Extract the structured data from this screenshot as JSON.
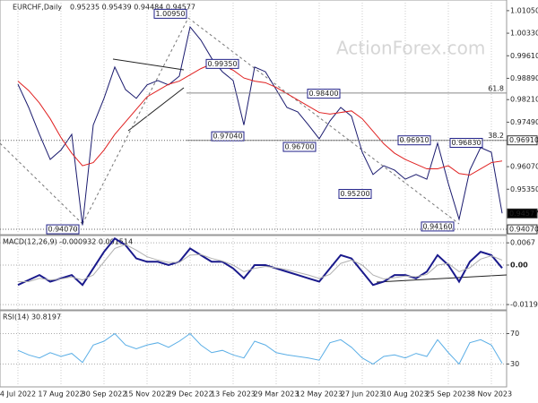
{
  "header": {
    "symbol": "EURCHF,Daily",
    "ohlc": "0.95235 0.95439 0.94484 0.94577"
  },
  "watermark": "ActionForex.com",
  "chart_data": [
    {
      "type": "line",
      "categories": [
        "4 Jul 2022",
        null,
        null,
        null,
        "17 Aug 2022",
        null,
        null,
        null,
        "30 Sep 2022",
        null,
        null,
        null,
        "15 Nov 2022",
        null,
        null,
        null,
        "29 Dec 2022",
        null,
        null,
        null,
        "13 Feb 2023",
        null,
        null,
        null,
        "29 Mar 2023",
        null,
        null,
        null,
        "12 May 2023",
        null,
        null,
        null,
        "27 Jun 2023",
        null,
        null,
        null,
        "10 Aug 2023",
        null,
        null,
        null,
        "25 Sep 2023",
        null,
        null,
        null,
        "8 Nov 2023",
        null
      ],
      "series": [
        {
          "color": "#1a1a6e",
          "values": [
            0.987,
            0.9796,
            0.971,
            0.963,
            0.966,
            0.971,
            0.942,
            0.974,
            0.9825,
            0.9925,
            0.9853,
            0.9825,
            0.9868,
            0.9882,
            0.9868,
            0.9896,
            1.0053,
            1.0011,
            0.9953,
            0.991,
            0.9882,
            0.974,
            0.9925,
            0.991,
            0.9853,
            0.9796,
            0.9782,
            0.974,
            0.9696,
            0.9753,
            0.9796,
            0.9768,
            0.9653,
            0.9582,
            0.961,
            0.9596,
            0.9567,
            0.9582,
            0.9567,
            0.9682,
            0.9553,
            0.9439,
            0.9596,
            0.9668,
            0.9653,
            0.9458
          ]
        },
        {
          "color": "#e02020",
          "values": [
            0.988,
            0.985,
            0.981,
            0.976,
            0.97,
            0.965,
            0.961,
            0.962,
            0.966,
            0.971,
            0.975,
            0.979,
            0.983,
            0.985,
            0.987,
            0.988,
            0.99,
            0.992,
            0.9935,
            0.993,
            0.9915,
            0.989,
            0.988,
            0.9875,
            0.986,
            0.984,
            0.982,
            0.98,
            0.978,
            0.9775,
            0.978,
            0.9785,
            0.976,
            0.972,
            0.968,
            0.965,
            0.963,
            0.9615,
            0.96,
            0.96,
            0.961,
            0.9585,
            0.958,
            0.96,
            0.962,
            0.9625
          ]
        }
      ],
      "ylim": [
        0.939,
        1.0139
      ],
      "yticks": [
        {
          "value": 1.0105,
          "label": "1.01050"
        },
        {
          "value": 1.0033,
          "label": "1.00330"
        },
        {
          "value": 0.9961,
          "label": "0.99610"
        },
        {
          "value": 0.9889,
          "label": "0.98890"
        },
        {
          "value": 0.9821,
          "label": "0.98210"
        },
        {
          "value": 0.9749,
          "label": "0.97490"
        },
        {
          "value": 0.9607,
          "label": "0.96070"
        },
        {
          "value": 0.9535,
          "label": "0.95350"
        }
      ],
      "annotations": [
        {
          "label": "1.00950",
          "value": 1.0095
        },
        {
          "label": "0.99350",
          "value": 0.9935
        },
        {
          "label": "0.98400",
          "value": 0.984
        },
        {
          "label": "0.97040",
          "value": 0.9704
        },
        {
          "label": "0.96700",
          "value": 0.967
        },
        {
          "label": "0.96910",
          "value": 0.9691
        },
        {
          "label": "0.96830",
          "value": 0.9683
        },
        {
          "label": "0.95200",
          "value": 0.952
        },
        {
          "label": "0.94160",
          "value": 0.9416
        },
        {
          "label": "0.94070",
          "value": 0.9407
        }
      ],
      "fib_levels": [
        {
          "label": "61.8",
          "value": 0.9842
        },
        {
          "label": "38.2",
          "value": 0.9691
        }
      ],
      "price_markers": [
        {
          "label": "0.96910",
          "value": 0.9691,
          "color": "#ffffff"
        },
        {
          "label": "0.94577",
          "value": 0.94577,
          "color": "#000000"
        },
        {
          "label": "0.94070",
          "value": 0.9407,
          "color": "#ffffff"
        }
      ]
    },
    {
      "type": "line",
      "title": "MACD(12,26,9) -0.000932 0.001514",
      "series": [
        {
          "color": "#1a1a8c",
          "values": [
            -0.006,
            -0.0045,
            -0.003,
            -0.005,
            -0.004,
            -0.003,
            -0.006,
            -0.001,
            0.004,
            0.008,
            0.006,
            0.002,
            0.001,
            0.001,
            0.0,
            0.001,
            0.005,
            0.003,
            0.001,
            0.001,
            -0.001,
            -0.004,
            0.0,
            0.0,
            -0.001,
            -0.002,
            -0.003,
            -0.004,
            -0.005,
            -0.001,
            0.003,
            0.002,
            -0.002,
            -0.006,
            -0.005,
            -0.003,
            -0.003,
            -0.004,
            -0.002,
            0.003,
            0.0,
            -0.005,
            0.001,
            0.004,
            0.003,
            -0.0009
          ]
        },
        {
          "color": "#b0b0b0",
          "values": [
            -0.005,
            -0.005,
            -0.004,
            -0.0045,
            -0.0042,
            -0.0036,
            -0.0045,
            -0.003,
            0.001,
            0.005,
            0.0062,
            0.0045,
            0.0025,
            0.0015,
            0.0008,
            0.0008,
            0.003,
            0.0032,
            0.002,
            0.0012,
            0.0,
            -0.002,
            -0.001,
            -0.0004,
            -0.0008,
            -0.0014,
            -0.0022,
            -0.003,
            -0.004,
            -0.0028,
            0.0005,
            0.0015,
            0.0,
            -0.003,
            -0.0042,
            -0.0038,
            -0.0033,
            -0.0035,
            -0.0028,
            0.0,
            0.0005,
            -0.002,
            -0.0008,
            0.0018,
            0.0028,
            0.0015
          ]
        }
      ],
      "ylim": [
        -0.0135,
        0.0089
      ],
      "yticks": [
        0.0067,
        {
          "value": 0,
          "label": "0.00"
        },
        -0.0119
      ]
    },
    {
      "type": "line",
      "title": "RSI(14) 30.8197",
      "series": [
        {
          "color": "#5aaee6",
          "values": [
            48,
            42,
            38,
            45,
            40,
            44,
            32,
            55,
            60,
            70,
            55,
            50,
            55,
            58,
            52,
            60,
            70,
            55,
            45,
            48,
            42,
            38,
            60,
            55,
            45,
            42,
            40,
            38,
            35,
            58,
            62,
            52,
            38,
            30,
            40,
            42,
            38,
            44,
            40,
            62,
            45,
            30,
            58,
            62,
            55,
            31
          ]
        }
      ],
      "ylim": [
        0,
        100
      ],
      "yticks": [
        70,
        30
      ]
    }
  ]
}
